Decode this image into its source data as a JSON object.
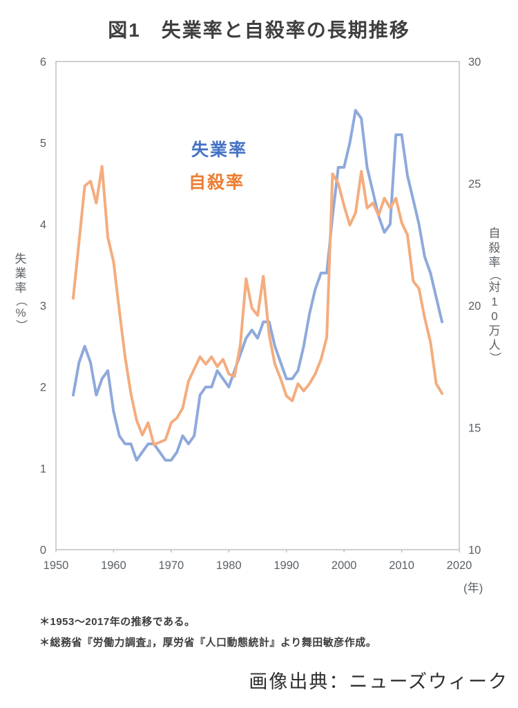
{
  "title": "図1　失業率と自殺率の長期推移",
  "caption": "画像出典：ニューズウィーク",
  "footnotes": [
    "＊1953～2017年の推移である。",
    "＊総務省『労働力調査』，厚労省『人口動態統計』より舞田敏彦作成。"
  ],
  "colors": {
    "unemployment_line": "#8EA9DB",
    "suicide_line": "#F4AC7E",
    "unemployment_label": "#4472C4",
    "suicide_label": "#ED7D31",
    "axis_text": "#5b6167",
    "plot_border": "#c0c0c0",
    "title_text": "#3f3f3f"
  },
  "chart_data": {
    "type": "line",
    "title": "図1　失業率と自殺率の長期推移",
    "grid": false,
    "legend_position": "inside-top-left-floating",
    "x": [
      1953,
      1954,
      1955,
      1956,
      1957,
      1958,
      1959,
      1960,
      1961,
      1962,
      1963,
      1964,
      1965,
      1966,
      1967,
      1968,
      1969,
      1970,
      1971,
      1972,
      1973,
      1974,
      1975,
      1976,
      1977,
      1978,
      1979,
      1980,
      1981,
      1982,
      1983,
      1984,
      1985,
      1986,
      1987,
      1988,
      1989,
      1990,
      1991,
      1992,
      1993,
      1994,
      1995,
      1996,
      1997,
      1998,
      1999,
      2000,
      2001,
      2002,
      2003,
      2004,
      2005,
      2006,
      2007,
      2008,
      2009,
      2010,
      2011,
      2012,
      2013,
      2014,
      2015,
      2016,
      2017
    ],
    "series": [
      {
        "name": "失業率",
        "axis": "left",
        "color": "#8EA9DB",
        "label_color": "#4472C4",
        "values": [
          1.9,
          2.3,
          2.5,
          2.3,
          1.9,
          2.1,
          2.2,
          1.7,
          1.4,
          1.3,
          1.3,
          1.1,
          1.2,
          1.3,
          1.3,
          1.2,
          1.1,
          1.1,
          1.2,
          1.4,
          1.3,
          1.4,
          1.9,
          2.0,
          2.0,
          2.2,
          2.1,
          2.0,
          2.2,
          2.4,
          2.6,
          2.7,
          2.6,
          2.8,
          2.8,
          2.5,
          2.3,
          2.1,
          2.1,
          2.2,
          2.5,
          2.9,
          3.2,
          3.4,
          3.4,
          4.1,
          4.7,
          4.7,
          5.0,
          5.4,
          5.3,
          4.7,
          4.4,
          4.1,
          3.9,
          4.0,
          5.1,
          5.1,
          4.6,
          4.3,
          4.0,
          3.6,
          3.4,
          3.1,
          2.8
        ]
      },
      {
        "name": "自殺率",
        "axis": "right",
        "color": "#F4AC7E",
        "label_color": "#ED7D31",
        "values": [
          20.3,
          22.6,
          24.9,
          25.1,
          24.2,
          25.7,
          22.8,
          21.8,
          19.8,
          17.9,
          16.4,
          15.3,
          14.7,
          15.2,
          14.3,
          14.4,
          14.5,
          15.2,
          15.4,
          15.8,
          16.9,
          17.4,
          17.9,
          17.6,
          17.9,
          17.5,
          17.8,
          17.2,
          17.1,
          18.4,
          21.1,
          19.9,
          19.6,
          21.2,
          18.8,
          17.6,
          17.0,
          16.3,
          16.1,
          16.8,
          16.5,
          16.8,
          17.2,
          17.8,
          18.7,
          25.4,
          25.0,
          24.1,
          23.3,
          23.8,
          25.5,
          24.0,
          24.2,
          23.7,
          24.4,
          24.0,
          24.4,
          23.4,
          22.9,
          21.0,
          20.7,
          19.5,
          18.5,
          16.8,
          16.4
        ]
      }
    ],
    "left_axis": {
      "title": "失業率（%）",
      "range": [
        0,
        6
      ],
      "ticks": [
        0,
        1,
        2,
        3,
        4,
        5,
        6
      ]
    },
    "right_axis": {
      "title": "自殺率（対10万人）",
      "range": [
        10,
        30
      ],
      "ticks": [
        10,
        15,
        20,
        25,
        30
      ]
    },
    "x_axis": {
      "range": [
        1950,
        2020
      ],
      "ticks": [
        1950,
        1960,
        1970,
        1980,
        1990,
        2000,
        2010,
        2020
      ],
      "unit_label": "(年)"
    }
  }
}
